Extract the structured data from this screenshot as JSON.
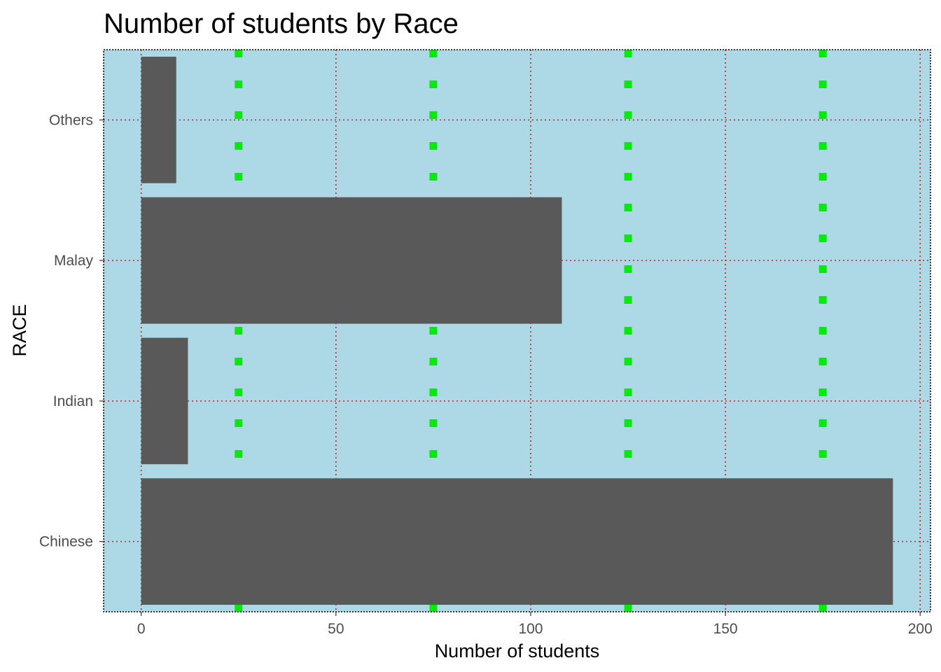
{
  "chart_data": {
    "type": "bar",
    "orientation": "horizontal",
    "title": "Number of students by Race",
    "xlabel": "Number of students",
    "ylabel": "RACE",
    "categories": [
      "Chinese",
      "Indian",
      "Malay",
      "Others"
    ],
    "values": [
      193,
      12,
      108,
      9
    ],
    "xlim": [
      -9.65,
      202.65
    ],
    "x_ticks": [
      0,
      50,
      100,
      150,
      200
    ],
    "x_tick_labels": [
      "0",
      "50",
      "100",
      "150",
      "200"
    ],
    "x_minor_ticks": [
      25,
      75,
      125,
      175
    ],
    "grid": true,
    "legend": "none",
    "colors": {
      "panel_background": "#add8e6",
      "bar_fill": "#595959",
      "major_grid": "#cc2222",
      "minor_grid": "#00ee00",
      "panel_border": "#000000",
      "tick_label": "#4d4d4d"
    }
  }
}
